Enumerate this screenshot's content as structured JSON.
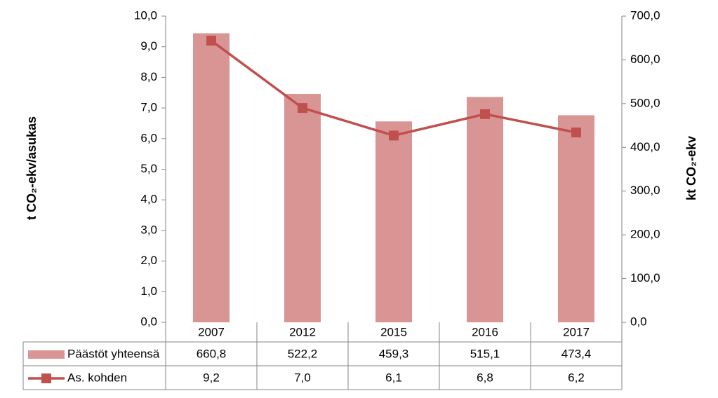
{
  "chart_data": {
    "type": "combo",
    "y_label": "t CO₂-ekv/asukas",
    "y2_label": "kt CO₂-ekv",
    "categories": [
      "2007",
      "2012",
      "2015",
      "2016",
      "2017"
    ],
    "series": [
      {
        "name": "Päästöt yhteensä",
        "type": "bar",
        "axis": "y2",
        "color": "#d99594",
        "values": [
          660.8,
          522.2,
          459.3,
          515.1,
          473.4
        ],
        "value_labels": [
          "660,8",
          "522,2",
          "459,3",
          "515,1",
          "473,4"
        ]
      },
      {
        "name": "As. kohden",
        "type": "line",
        "axis": "y",
        "color": "#c0504d",
        "values": [
          9.2,
          7.0,
          6.1,
          6.8,
          6.2
        ],
        "value_labels": [
          "9,2",
          "7,0",
          "6,1",
          "6,8",
          "6,2"
        ]
      }
    ],
    "ylim": [
      0,
      10
    ],
    "yticks": [
      {
        "value": 0,
        "label": "0,0"
      },
      {
        "value": 1,
        "label": "1,0"
      },
      {
        "value": 2,
        "label": "2,0"
      },
      {
        "value": 3,
        "label": "3,0"
      },
      {
        "value": 4,
        "label": "4,0"
      },
      {
        "value": 5,
        "label": "5,0"
      },
      {
        "value": 6,
        "label": "6,0"
      },
      {
        "value": 7,
        "label": "7,0"
      },
      {
        "value": 8,
        "label": "8,0"
      },
      {
        "value": 9,
        "label": "9,0"
      },
      {
        "value": 10,
        "label": "10,0"
      }
    ],
    "y2lim": [
      0,
      700
    ],
    "y2ticks": [
      {
        "value": 0,
        "label": "0,0"
      },
      {
        "value": 100,
        "label": "100,0"
      },
      {
        "value": 200,
        "label": "200,0"
      },
      {
        "value": 300,
        "label": "300,0"
      },
      {
        "value": 400,
        "label": "400,0"
      },
      {
        "value": 500,
        "label": "500,0"
      },
      {
        "value": 600,
        "label": "600,0"
      },
      {
        "value": 700,
        "label": "700,0"
      }
    ],
    "grid": false,
    "data_table": true
  }
}
